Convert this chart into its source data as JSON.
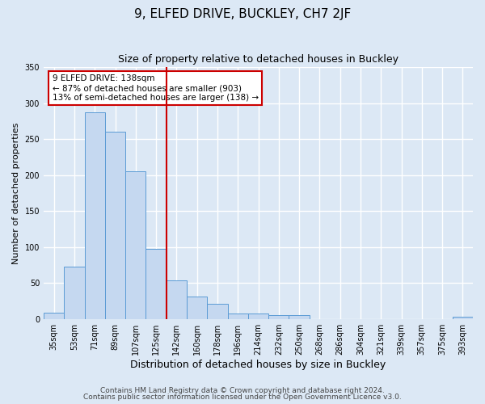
{
  "title": "9, ELFED DRIVE, BUCKLEY, CH7 2JF",
  "subtitle": "Size of property relative to detached houses in Buckley",
  "xlabel": "Distribution of detached houses by size in Buckley",
  "ylabel": "Number of detached properties",
  "categories": [
    "35sqm",
    "53sqm",
    "71sqm",
    "89sqm",
    "107sqm",
    "125sqm",
    "142sqm",
    "160sqm",
    "178sqm",
    "196sqm",
    "214sqm",
    "232sqm",
    "250sqm",
    "268sqm",
    "286sqm",
    "304sqm",
    "321sqm",
    "339sqm",
    "357sqm",
    "375sqm",
    "393sqm"
  ],
  "values": [
    9,
    73,
    287,
    260,
    205,
    97,
    54,
    31,
    21,
    8,
    8,
    5,
    5,
    0,
    0,
    0,
    0,
    0,
    0,
    0,
    3
  ],
  "bar_color": "#c5d8f0",
  "bar_edge_color": "#5b9bd5",
  "vline_x": 5.5,
  "vline_color": "#cc0000",
  "annotation_title": "9 ELFED DRIVE: 138sqm",
  "annotation_line2": "← 87% of detached houses are smaller (903)",
  "annotation_line3": "13% of semi-detached houses are larger (138) →",
  "annotation_box_color": "#cc0000",
  "ylim": [
    0,
    350
  ],
  "yticks": [
    0,
    50,
    100,
    150,
    200,
    250,
    300,
    350
  ],
  "footer1": "Contains HM Land Registry data © Crown copyright and database right 2024.",
  "footer2": "Contains public sector information licensed under the Open Government Licence v3.0.",
  "background_color": "#dce8f5",
  "plot_background_color": "#dce8f5",
  "grid_color": "#ffffff",
  "title_fontsize": 11,
  "subtitle_fontsize": 9,
  "xlabel_fontsize": 9,
  "ylabel_fontsize": 8,
  "tick_fontsize": 7,
  "footer_fontsize": 6.5,
  "annotation_fontsize": 7.5
}
